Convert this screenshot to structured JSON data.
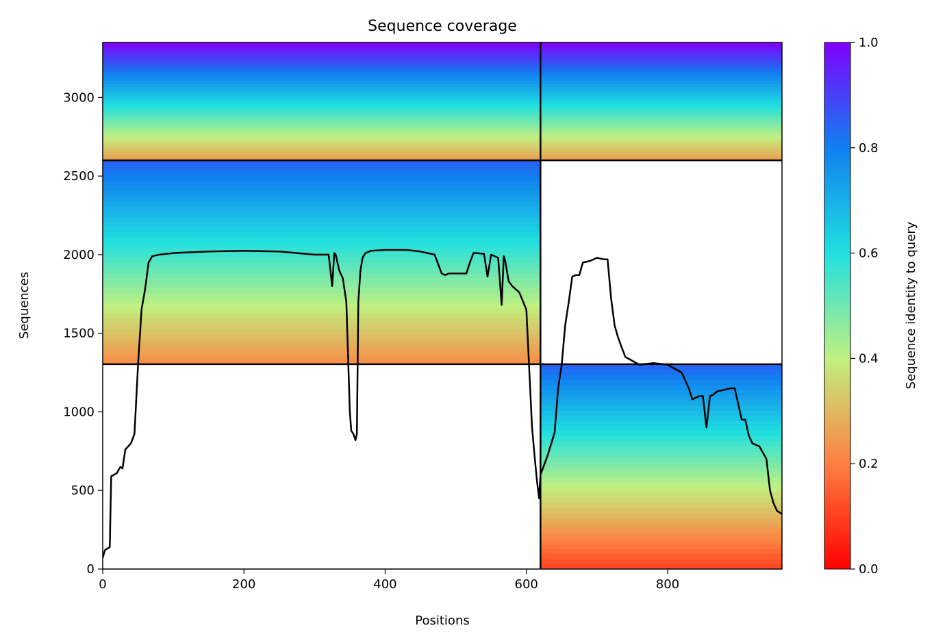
{
  "chart_data": {
    "type": "heatmap",
    "title": "Sequence coverage",
    "xlabel": "Positions",
    "ylabel": "Sequences",
    "xlim": [
      0,
      962
    ],
    "ylim": [
      0,
      3350
    ],
    "xticks": [
      0,
      200,
      400,
      600,
      800
    ],
    "yticks": [
      0,
      500,
      1000,
      1500,
      2000,
      2500,
      3000
    ],
    "grid": false,
    "colorbar": {
      "label": "Sequence identity to query",
      "range": [
        0,
        1
      ],
      "ticks": [
        0.0,
        0.2,
        0.4,
        0.6,
        0.8,
        1.0
      ],
      "colormap": "rainbow_r",
      "stops": [
        "#ff0000",
        "#ff8040",
        "#c0f080",
        "#20e0e0",
        "#1080f0",
        "#8000ff"
      ]
    },
    "chain_breaks": {
      "x": [
        620
      ],
      "y": [
        1303,
        2600
      ]
    },
    "blocks": [
      {
        "x": [
          0,
          620
        ],
        "y": [
          2600,
          3350
        ],
        "identity_range": [
          0.25,
          1.0
        ]
      },
      {
        "x": [
          620,
          962
        ],
        "y": [
          2600,
          3350
        ],
        "identity_range": [
          0.25,
          1.0
        ]
      },
      {
        "x": [
          0,
          620
        ],
        "y": [
          1303,
          2600
        ],
        "identity_range": [
          0.22,
          0.85
        ]
      },
      {
        "x": [
          620,
          962
        ],
        "y": [
          0,
          1303
        ],
        "identity_range": [
          0.1,
          0.85
        ]
      }
    ],
    "series": [
      {
        "x": [
          0,
          3,
          10,
          12,
          20,
          25,
          28,
          32,
          40,
          45,
          50,
          55,
          60,
          65,
          70,
          80,
          100,
          150,
          200,
          250,
          300,
          320,
          325,
          328,
          330,
          335,
          340,
          345,
          350,
          352,
          355,
          358,
          360,
          362,
          365,
          368,
          372,
          380,
          400,
          430,
          450,
          470,
          480,
          485,
          490,
          500,
          515,
          520,
          525,
          530,
          540,
          545,
          550,
          560,
          565,
          568,
          570,
          575,
          580,
          590,
          600,
          608,
          612,
          615,
          618,
          620,
          625,
          630,
          640,
          645,
          650,
          655,
          660,
          665,
          670,
          675,
          680,
          690,
          700,
          710,
          715,
          720,
          725,
          730,
          740,
          760,
          780,
          800,
          820,
          830,
          835,
          840,
          845,
          850,
          855,
          860,
          865,
          870,
          880,
          890,
          895,
          900,
          905,
          910,
          915,
          920,
          930,
          940,
          945,
          950,
          955,
          962
        ],
        "y": [
          70,
          120,
          140,
          590,
          610,
          650,
          640,
          760,
          800,
          860,
          1300,
          1650,
          1780,
          1950,
          1990,
          2000,
          2010,
          2020,
          2025,
          2020,
          2000,
          2000,
          1800,
          2010,
          2000,
          1900,
          1850,
          1700,
          1000,
          880,
          860,
          820,
          860,
          1700,
          1900,
          1980,
          2010,
          2025,
          2030,
          2030,
          2020,
          2000,
          1880,
          1870,
          1880,
          1880,
          1880,
          1950,
          2010,
          2010,
          2005,
          1860,
          2000,
          1980,
          1680,
          1990,
          1960,
          1830,
          1800,
          1760,
          1650,
          900,
          700,
          560,
          450,
          600,
          660,
          720,
          870,
          1150,
          1300,
          1550,
          1700,
          1860,
          1870,
          1870,
          1950,
          1960,
          1980,
          1970,
          1970,
          1720,
          1550,
          1470,
          1350,
          1300,
          1310,
          1300,
          1250,
          1150,
          1080,
          1090,
          1100,
          1100,
          900,
          1100,
          1110,
          1130,
          1140,
          1150,
          1150,
          1050,
          950,
          950,
          850,
          800,
          780,
          700,
          500,
          420,
          370,
          350
        ]
      }
    ]
  }
}
